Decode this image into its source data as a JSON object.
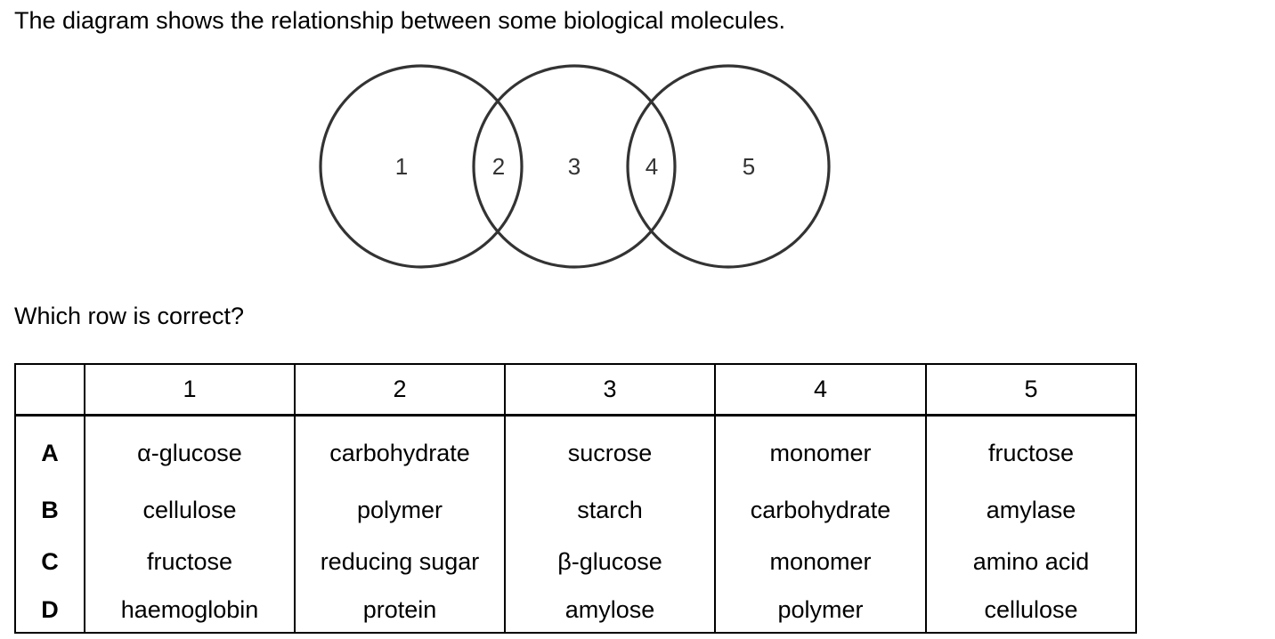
{
  "intro_text": "The diagram shows the relationship between some biological molecules.",
  "diagram": {
    "region_labels": [
      "1",
      "2",
      "3",
      "4",
      "5"
    ]
  },
  "question_text": "Which row is correct?",
  "table": {
    "headers": [
      "",
      "1",
      "2",
      "3",
      "4",
      "5"
    ],
    "rows": [
      {
        "letter": "A",
        "cells": [
          "α-glucose",
          "carbohydrate",
          "sucrose",
          "monomer",
          "fructose"
        ]
      },
      {
        "letter": "B",
        "cells": [
          "cellulose",
          "polymer",
          "starch",
          "carbohydrate",
          "amylase"
        ]
      },
      {
        "letter": "C",
        "cells": [
          "fructose",
          "reducing sugar",
          "β-glucose",
          "monomer",
          "amino acid"
        ]
      },
      {
        "letter": "D",
        "cells": [
          "haemoglobin",
          "protein",
          "amylose",
          "polymer",
          "cellulose"
        ]
      }
    ]
  }
}
